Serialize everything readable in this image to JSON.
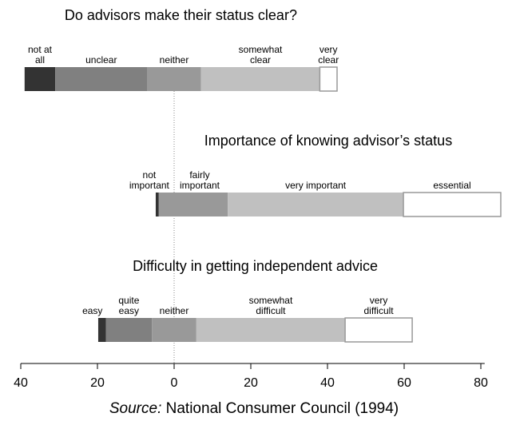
{
  "chart_data": {
    "type": "diverging-bar",
    "xlim": [
      -40,
      81
    ],
    "xticks": [
      {
        "value": -40,
        "label": "40"
      },
      {
        "value": -20,
        "label": "20"
      },
      0,
      20,
      40,
      60,
      80
    ],
    "source": {
      "prefix": "Source:",
      "text": "National Consumer Council (1994)"
    },
    "bars": [
      {
        "title": "Do advisors make their status clear?",
        "start": -39,
        "segments": [
          {
            "label": [
              "not at",
              "all"
            ],
            "value": 8,
            "color": "#333333"
          },
          {
            "label": [
              "unclear"
            ],
            "value": 24,
            "color": "#808080"
          },
          {
            "label": [
              "neither"
            ],
            "value": 14,
            "color": "#999999"
          },
          {
            "label": [
              "somewhat",
              "clear"
            ],
            "value": 31,
            "color": "#c0c0c0"
          },
          {
            "label": [
              "very",
              "clear"
            ],
            "value": 4.5,
            "color": "#ffffff"
          }
        ]
      },
      {
        "title": "Importance of knowing advisor’s status",
        "start": -4.8,
        "segments": [
          {
            "label": [
              "not",
              "important"
            ],
            "value": 0.8,
            "color": "#333333"
          },
          {
            "label": [
              "fairly",
              "important"
            ],
            "value": 18,
            "color": "#999999"
          },
          {
            "label": [
              "very important"
            ],
            "value": 45.8,
            "color": "#c0c0c0"
          },
          {
            "label": [
              "essential"
            ],
            "value": 25.4,
            "color": "#ffffff"
          }
        ]
      },
      {
        "title": "Difficulty in getting independent advice",
        "start": -19.8,
        "segments": [
          {
            "label": [
              "easy"
            ],
            "value": 2,
            "color": "#333333"
          },
          {
            "label": [
              "quite",
              "easy"
            ],
            "value": 12,
            "color": "#808080"
          },
          {
            "label": [
              "neither"
            ],
            "value": 11.6,
            "color": "#999999"
          },
          {
            "label": [
              "somewhat",
              "difficult"
            ],
            "value": 38.8,
            "color": "#c0c0c0"
          },
          {
            "label": [
              "very",
              "difficult"
            ],
            "value": 17.5,
            "color": "#ffffff"
          }
        ]
      }
    ]
  }
}
